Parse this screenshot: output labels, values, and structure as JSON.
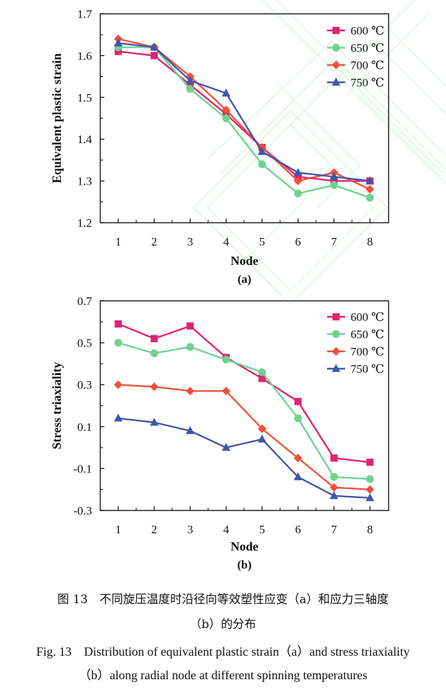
{
  "chart_data": [
    {
      "id": "a",
      "type": "line",
      "xlabel": "Node",
      "ylabel": "Equivalent plastic strain",
      "sublabel": "(a)",
      "categories": [
        "1",
        "2",
        "3",
        "4",
        "5",
        "6",
        "7",
        "8"
      ],
      "ylim": [
        1.2,
        1.7
      ],
      "yticks": [
        "1.2",
        "1.3",
        "1.4",
        "1.5",
        "1.6",
        "1.7"
      ],
      "legend_position": "top-right",
      "series": [
        {
          "name": "600 ℃",
          "marker": "square",
          "color": "#e0236f",
          "values": [
            1.61,
            1.6,
            1.53,
            1.46,
            1.38,
            1.31,
            1.3,
            1.3
          ]
        },
        {
          "name": "650 ℃",
          "marker": "circle",
          "color": "#6fd28f",
          "values": [
            1.62,
            1.62,
            1.52,
            1.45,
            1.34,
            1.27,
            1.29,
            1.26
          ]
        },
        {
          "name": "700 ℃",
          "marker": "diamond",
          "color": "#f0503c",
          "values": [
            1.64,
            1.62,
            1.55,
            1.47,
            1.38,
            1.3,
            1.32,
            1.28
          ]
        },
        {
          "name": "750 ℃",
          "marker": "triangle",
          "color": "#4256a8",
          "values": [
            1.63,
            1.62,
            1.54,
            1.51,
            1.37,
            1.32,
            1.31,
            1.3
          ]
        }
      ]
    },
    {
      "id": "b",
      "type": "line",
      "xlabel": "Node",
      "ylabel": "Stress triaxiality",
      "sublabel": "(b)",
      "categories": [
        "1",
        "2",
        "3",
        "4",
        "5",
        "6",
        "7",
        "8"
      ],
      "ylim": [
        -0.3,
        0.7
      ],
      "yticks": [
        "-0.3",
        "-0.1",
        "0.1",
        "0.3",
        "0.5",
        "0.7"
      ],
      "legend_position": "top-right",
      "series": [
        {
          "name": "600 ℃",
          "marker": "square",
          "color": "#e0236f",
          "values": [
            0.59,
            0.52,
            0.58,
            0.43,
            0.33,
            0.22,
            -0.05,
            -0.07
          ]
        },
        {
          "name": "650 ℃",
          "marker": "circle",
          "color": "#6fd28f",
          "values": [
            0.5,
            0.45,
            0.48,
            0.42,
            0.36,
            0.14,
            -0.14,
            -0.15
          ]
        },
        {
          "name": "700 ℃",
          "marker": "diamond",
          "color": "#f0503c",
          "values": [
            0.3,
            0.29,
            0.27,
            0.27,
            0.09,
            -0.05,
            -0.19,
            -0.2
          ]
        },
        {
          "name": "750 ℃",
          "marker": "triangle",
          "color": "#4256a8",
          "values": [
            0.14,
            0.12,
            0.08,
            0.0,
            0.04,
            -0.14,
            -0.23,
            -0.24
          ]
        }
      ]
    }
  ],
  "caption": {
    "cn_line1": "图 13　不同旋压温度时沿径向等效塑性应变（a）和应力三轴度",
    "cn_line2": "（b）的分布",
    "en_line1": "Fig. 13　Distribution of equivalent plastic strain（a）and stress triaxiality",
    "en_line2": "（b）along radial node at different spinning temperatures"
  }
}
